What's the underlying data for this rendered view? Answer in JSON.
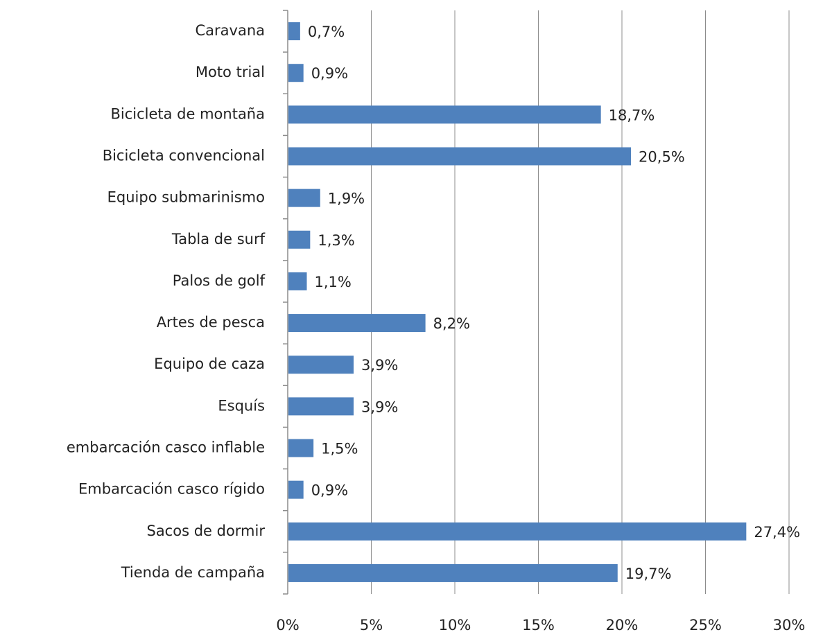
{
  "chart_data": {
    "type": "bar",
    "orientation": "horizontal",
    "categories": [
      "Caravana",
      "Moto trial",
      "Bicicleta de montaña",
      "Bicicleta convencional",
      "Equipo submarinismo",
      "Tabla de surf",
      "Palos de golf",
      "Artes de pesca",
      "Equipo de caza",
      "Esquís",
      "embarcación casco inflable",
      "Embarcación casco rígido",
      "Sacos de dormir",
      "Tienda de campaña"
    ],
    "values": [
      0.7,
      0.9,
      18.7,
      20.5,
      1.9,
      1.3,
      1.1,
      8.2,
      3.9,
      3.9,
      1.5,
      0.9,
      27.4,
      19.7
    ],
    "value_labels": [
      "0,7%",
      "0,9%",
      "18,7%",
      "20,5%",
      "1,9%",
      "1,3%",
      "1,1%",
      "8,2%",
      "3,9%",
      "3,9%",
      "1,5%",
      "0,9%",
      "27,4%",
      "19,7%"
    ],
    "color": "#4f81bd",
    "xlim": [
      0,
      30
    ],
    "xticks": [
      {
        "value": 0,
        "label": "0%"
      },
      {
        "value": 5,
        "label": "5%"
      },
      {
        "value": 10,
        "label": "10%"
      },
      {
        "value": 15,
        "label": "15%"
      },
      {
        "value": 20,
        "label": "20%"
      },
      {
        "value": 25,
        "label": "25%"
      },
      {
        "value": 30,
        "label": "30%"
      }
    ],
    "grid": true
  }
}
